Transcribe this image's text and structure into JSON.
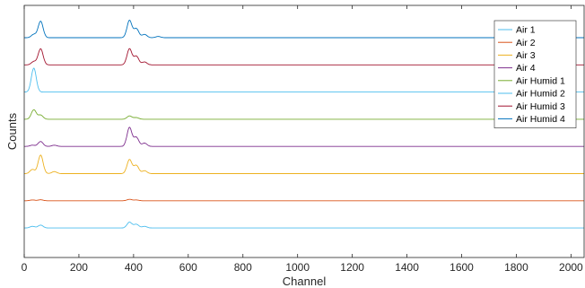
{
  "chart_data": {
    "type": "line",
    "title": "",
    "xlabel": "Channel",
    "ylabel": "Counts",
    "xlim": [
      0,
      2048
    ],
    "xticks": [
      0,
      200,
      400,
      600,
      800,
      1000,
      1200,
      1400,
      1600,
      1800,
      2000
    ],
    "yticks_shown": false,
    "grid": false,
    "legend_position": "top-right",
    "offset_stacked": true,
    "series": [
      {
        "name": "Air 1",
        "color": "#4DBEEE",
        "peaks": [
          {
            "x": 30,
            "h": 0.4
          },
          {
            "x": 60,
            "h": 0.7
          },
          {
            "x": 385,
            "h": 1.4
          },
          {
            "x": 410,
            "h": 0.9
          },
          {
            "x": 440,
            "h": 0.4
          }
        ]
      },
      {
        "name": "Air 2",
        "color": "#D95319",
        "peaks": [
          {
            "x": 30,
            "h": 0.2
          },
          {
            "x": 60,
            "h": 0.25
          },
          {
            "x": 385,
            "h": 0.35
          },
          {
            "x": 410,
            "h": 0.2
          }
        ]
      },
      {
        "name": "Air 3",
        "color": "#EDB120",
        "peaks": [
          {
            "x": 30,
            "h": 1.0
          },
          {
            "x": 60,
            "h": 4.5
          },
          {
            "x": 110,
            "h": 0.5
          },
          {
            "x": 385,
            "h": 3.4
          },
          {
            "x": 410,
            "h": 2.0
          },
          {
            "x": 440,
            "h": 0.7
          }
        ]
      },
      {
        "name": "Air 4",
        "color": "#7E2F8E",
        "peaks": [
          {
            "x": 30,
            "h": 0.3
          },
          {
            "x": 60,
            "h": 1.2
          },
          {
            "x": 110,
            "h": 0.3
          },
          {
            "x": 385,
            "h": 4.6
          },
          {
            "x": 410,
            "h": 2.2
          },
          {
            "x": 440,
            "h": 0.8
          }
        ]
      },
      {
        "name": "Air Humid 1",
        "color": "#77AC30",
        "peaks": [
          {
            "x": 35,
            "h": 2.3
          },
          {
            "x": 60,
            "h": 1.0
          },
          {
            "x": 385,
            "h": 0.8
          },
          {
            "x": 410,
            "h": 0.4
          }
        ]
      },
      {
        "name": "Air Humid 2",
        "color": "#4DBEEE",
        "peaks": [
          {
            "x": 35,
            "h": 5.8
          }
        ]
      },
      {
        "name": "Air Humid 3",
        "color": "#A2142F",
        "peaks": [
          {
            "x": 35,
            "h": 0.8
          },
          {
            "x": 60,
            "h": 3.9
          },
          {
            "x": 385,
            "h": 3.9
          },
          {
            "x": 410,
            "h": 2.1
          },
          {
            "x": 440,
            "h": 0.7
          }
        ]
      },
      {
        "name": "Air Humid 4",
        "color": "#0072BD",
        "peaks": [
          {
            "x": 35,
            "h": 0.8
          },
          {
            "x": 60,
            "h": 4.0
          },
          {
            "x": 385,
            "h": 4.2
          },
          {
            "x": 410,
            "h": 2.2
          },
          {
            "x": 440,
            "h": 0.8
          },
          {
            "x": 490,
            "h": 0.3
          }
        ]
      }
    ]
  }
}
